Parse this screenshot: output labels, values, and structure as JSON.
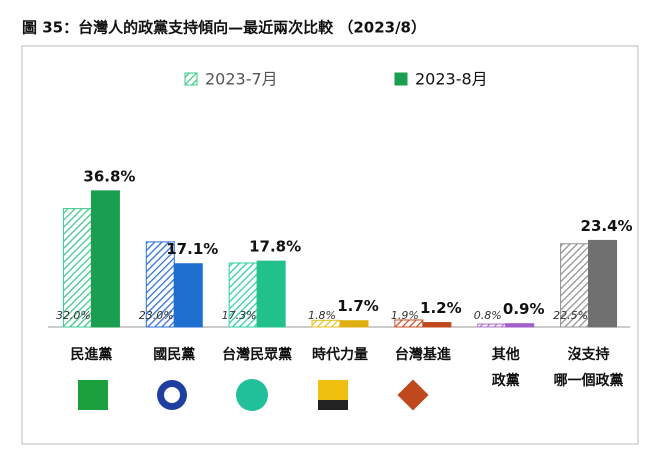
{
  "chart_data": {
    "type": "bar",
    "title": "圖 35：台灣人的政黨支持傾向—最近兩次比較 （2023/8）",
    "categories": [
      [
        "民進黨"
      ],
      [
        "國民黨"
      ],
      [
        "台灣民眾黨"
      ],
      [
        "時代力量"
      ],
      [
        "台灣基進"
      ],
      [
        "其他",
        "政黨"
      ],
      [
        "沒支持",
        "哪一個政黨"
      ]
    ],
    "series": [
      {
        "name": "2023-7月",
        "color": "#3cc88c",
        "hatch": true,
        "colors": [
          "#3cc88c",
          "#2a6fd6",
          "#2ecfa0",
          "#e8c020",
          "#c8502a",
          "#b070d0",
          "#909090"
        ],
        "values": [
          32.0,
          23.0,
          17.3,
          1.8,
          1.9,
          0.8,
          22.5
        ],
        "value_labels": [
          "32.0%",
          "23.0%",
          "17.3%",
          "1.8%",
          "1.9%",
          "0.8%",
          "22.5%"
        ]
      },
      {
        "name": "2023-8月",
        "color": "#1a9e50",
        "hatch": false,
        "colors": [
          "#1a9e50",
          "#1e6fd0",
          "#22c08a",
          "#e0b010",
          "#c0481e",
          "#a060c8",
          "#707070"
        ],
        "values": [
          36.8,
          17.1,
          17.8,
          1.7,
          1.2,
          0.9,
          23.4
        ],
        "value_labels": [
          "36.8%",
          "17.1%",
          "17.8%",
          "1.7%",
          "1.2%",
          "0.9%",
          "23.4%"
        ]
      }
    ],
    "ylim": [
      0,
      40
    ]
  }
}
